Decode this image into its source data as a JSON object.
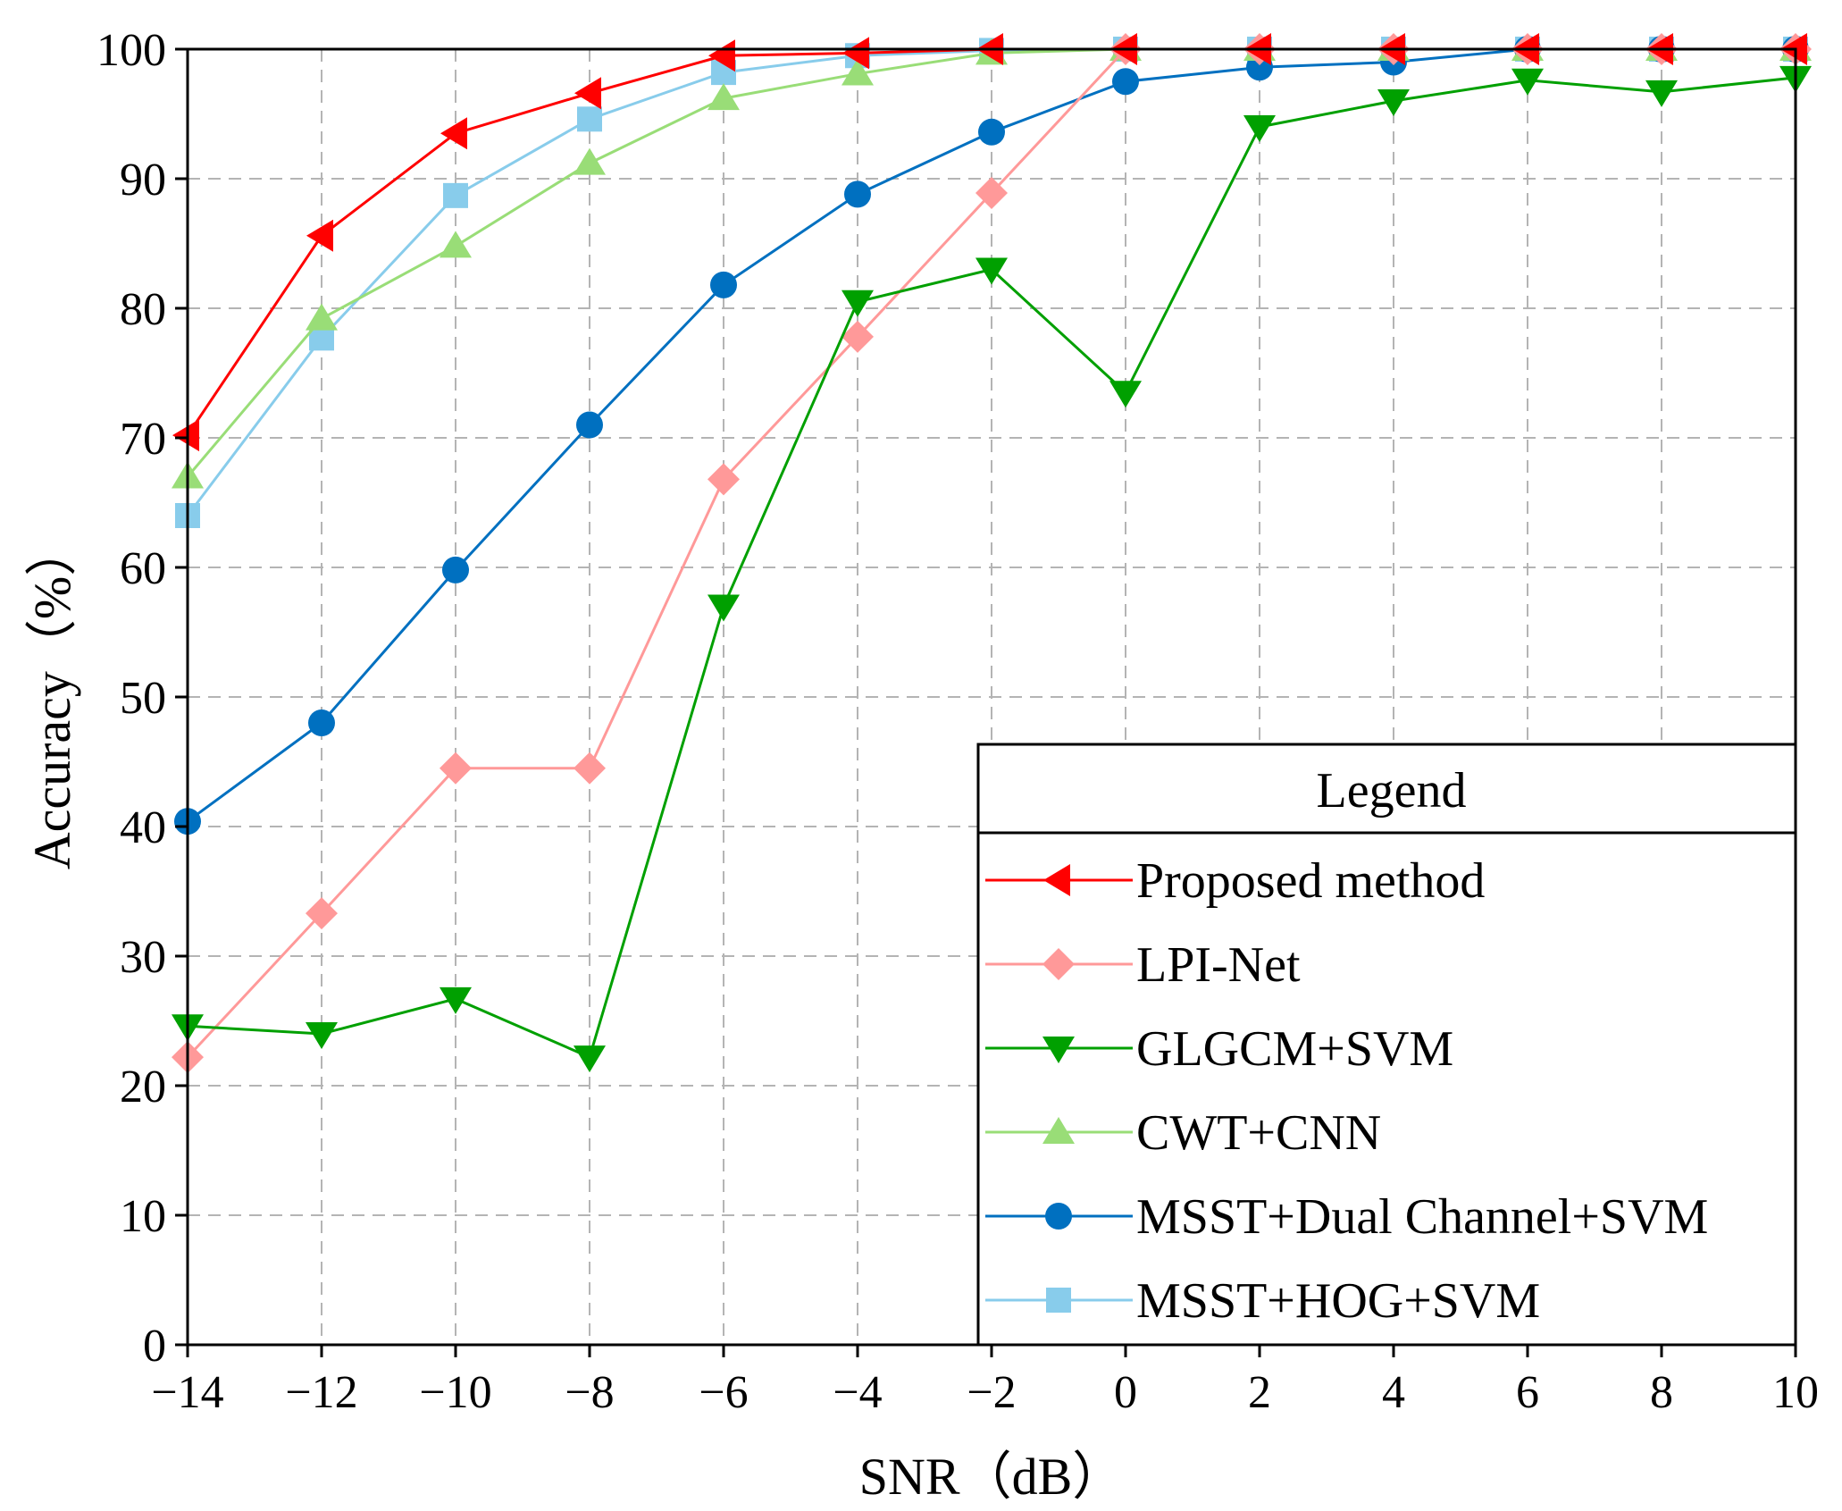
{
  "chart_data": {
    "type": "line",
    "xlabel": "SNR（dB）",
    "ylabel": "Accuracy（%）",
    "xlim": [
      -14,
      10
    ],
    "ylim": [
      0,
      100
    ],
    "x_ticks": [
      -14,
      -12,
      -10,
      -8,
      -6,
      -4,
      -2,
      0,
      2,
      4,
      6,
      8,
      10
    ],
    "x_tick_labels": [
      "−14",
      "−12",
      "−10",
      "−8",
      "−6",
      "−4",
      "−2",
      "0",
      "2",
      "4",
      "6",
      "8",
      "10"
    ],
    "y_ticks": [
      0,
      10,
      20,
      30,
      40,
      50,
      60,
      70,
      80,
      90,
      100
    ],
    "y_tick_labels": [
      "0",
      "10",
      "20",
      "30",
      "40",
      "50",
      "60",
      "70",
      "80",
      "90",
      "100"
    ],
    "grid": true,
    "legend": {
      "title": "Legend",
      "placement": "bottom-right"
    },
    "x": [
      -14,
      -12,
      -10,
      -8,
      -6,
      -4,
      -2,
      0,
      2,
      4,
      6,
      8,
      10
    ],
    "series": [
      {
        "name": "Proposed method",
        "color": "#ff0000",
        "marker": "triangle-left",
        "values": [
          70.2,
          85.6,
          93.5,
          96.6,
          99.5,
          99.7,
          100,
          100,
          100,
          100,
          100,
          100,
          100
        ]
      },
      {
        "name": "LPI-Net",
        "color": "#ff9999",
        "marker": "diamond",
        "values": [
          22.2,
          33.3,
          44.5,
          44.5,
          66.8,
          77.8,
          88.9,
          100,
          100,
          100,
          100,
          100,
          100
        ]
      },
      {
        "name": "GLGCM+SVM",
        "color": "#00a000",
        "marker": "triangle-down",
        "values": [
          24.6,
          24.0,
          26.7,
          22.2,
          57.0,
          80.5,
          83.0,
          73.5,
          94.0,
          96.0,
          97.6,
          96.7,
          97.8
        ]
      },
      {
        "name": "CWT+CNN",
        "color": "#99dd77",
        "marker": "triangle-up",
        "values": [
          67.0,
          79.2,
          84.8,
          91.2,
          96.2,
          98.1,
          99.7,
          100,
          100,
          100,
          100,
          100,
          100
        ]
      },
      {
        "name": "MSST+Dual Channel+SVM",
        "color": "#0070c0",
        "marker": "circle",
        "values": [
          40.4,
          48.0,
          59.8,
          71.0,
          81.8,
          88.8,
          93.6,
          97.5,
          98.6,
          99.0,
          100,
          100,
          100
        ]
      },
      {
        "name": "MSST+HOG+SVM",
        "color": "#88cceb",
        "marker": "square",
        "values": [
          64.0,
          77.7,
          88.7,
          94.6,
          98.2,
          99.5,
          99.9,
          100,
          100,
          100,
          100,
          100,
          100
        ]
      }
    ]
  }
}
